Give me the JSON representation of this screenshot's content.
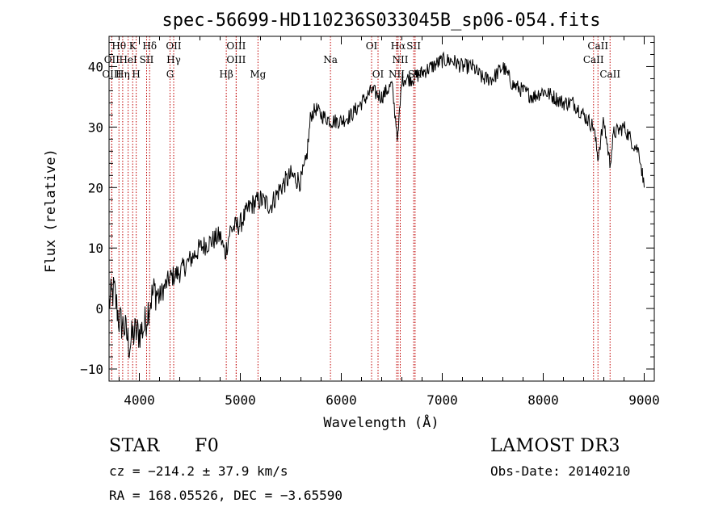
{
  "chart_data": {
    "type": "line",
    "title": "spec-56699-HD110236S033045B_sp06-054.fits",
    "xlabel": "Wavelength (Å)",
    "ylabel": "Flux (relative)",
    "xlim": [
      3700,
      9100
    ],
    "ylim": [
      -12,
      45
    ],
    "xticks": [
      4000,
      5000,
      6000,
      7000,
      8000,
      9000
    ],
    "yticks": [
      -10,
      0,
      10,
      20,
      30,
      40
    ],
    "grid": false,
    "series": [
      {
        "name": "flux",
        "x": [
          3700,
          3750,
          3800,
          3850,
          3900,
          3950,
          4000,
          4050,
          4100,
          4150,
          4200,
          4300,
          4400,
          4500,
          4600,
          4700,
          4800,
          4850,
          4900,
          5000,
          5100,
          5200,
          5300,
          5400,
          5500,
          5600,
          5650,
          5700,
          5750,
          5800,
          5900,
          6000,
          6100,
          6200,
          6300,
          6400,
          6500,
          6560,
          6600,
          6700,
          6800,
          6900,
          7000,
          7100,
          7200,
          7300,
          7400,
          7500,
          7600,
          7700,
          7800,
          7900,
          8000,
          8100,
          8200,
          8300,
          8400,
          8500,
          8540,
          8600,
          8660,
          8700,
          8800,
          8900,
          8950,
          9000
        ],
        "values": [
          1,
          3,
          -2,
          -3,
          -6,
          -4,
          -4,
          -3,
          1,
          3,
          2,
          5,
          6,
          8,
          10,
          11,
          12,
          9,
          13,
          14,
          17,
          18,
          17,
          20,
          22,
          21,
          24,
          32,
          33,
          32,
          31,
          31,
          32,
          34,
          36,
          35,
          37,
          28,
          38,
          38,
          39,
          40,
          41,
          41,
          40,
          40,
          38,
          38,
          40,
          37,
          36,
          35,
          36,
          35,
          34,
          34,
          32,
          30,
          25,
          31,
          24,
          29,
          30,
          27,
          26,
          20
        ]
      }
    ],
    "line_markers": [
      {
        "label": "Hθ",
        "x": 3798,
        "row": 1
      },
      {
        "label": "K",
        "x": 3934,
        "row": 1
      },
      {
        "label": "Hδ",
        "x": 4102,
        "row": 1
      },
      {
        "label": "OII",
        "x": 4340,
        "row": 1
      },
      {
        "label": "OIII",
        "x": 4959,
        "row": 1
      },
      {
        "label": "OI",
        "x": 6300,
        "row": 1
      },
      {
        "label": "Hα",
        "x": 6563,
        "row": 1
      },
      {
        "label": "SII",
        "x": 6717,
        "row": 1
      },
      {
        "label": "CaII",
        "x": 8542,
        "row": 1
      },
      {
        "label": "OII",
        "x": 3727,
        "row": 2
      },
      {
        "label": "HeI",
        "x": 3889,
        "row": 2
      },
      {
        "label": "SII",
        "x": 4072,
        "row": 2
      },
      {
        "label": "Hγ",
        "x": 4340,
        "row": 2
      },
      {
        "label": "OIII",
        "x": 4959,
        "row": 2
      },
      {
        "label": "Na",
        "x": 5893,
        "row": 2
      },
      {
        "label": "NII",
        "x": 6584,
        "row": 2
      },
      {
        "label": "CaII",
        "x": 8498,
        "row": 2
      },
      {
        "label": "OIII",
        "x": 3727,
        "row": 3
      },
      {
        "label": "Hη",
        "x": 3835,
        "row": 3
      },
      {
        "label": "H",
        "x": 3969,
        "row": 3
      },
      {
        "label": "G",
        "x": 4304,
        "row": 3
      },
      {
        "label": "Hβ",
        "x": 4861,
        "row": 3
      },
      {
        "label": "Mg",
        "x": 5175,
        "row": 3
      },
      {
        "label": "OI",
        "x": 6364,
        "row": 3
      },
      {
        "label": "NII",
        "x": 6548,
        "row": 3
      },
      {
        "label": "SII",
        "x": 6731,
        "row": 3
      },
      {
        "label": "CaII",
        "x": 8662,
        "row": 3
      }
    ]
  },
  "info": {
    "object_type": "STAR",
    "subclass": "F0",
    "survey": "LAMOST DR3",
    "redshift_line": "cz = −214.2 ± 37.9 km/s",
    "obs_date_line": "Obs-Date: 20140210",
    "coords_line": "RA = 168.05526, DEC =  −3.65590"
  },
  "colors": {
    "axis": "#000000",
    "spectrum": "#000000",
    "marker_line": "#c00000",
    "background": "#ffffff"
  }
}
